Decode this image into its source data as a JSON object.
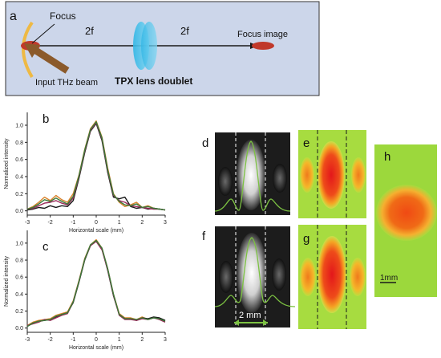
{
  "panel_a": {
    "letter": "a",
    "focus_label": "Focus",
    "distance_left": "2f",
    "distance_right": "2f",
    "focus_image_label": "Focus image",
    "beam_label": "Input THz beam",
    "lens_label": "TPX lens doublet",
    "colors": {
      "background": "#ccd6ea",
      "axis": "#1a1a1a",
      "focus": "#c0392b",
      "lens": "#4fc3e8",
      "beam": "#8b5a2b",
      "mirror": "#f2b632"
    }
  },
  "panel_labels": {
    "d": "d",
    "e": "e",
    "f": "f",
    "g": "g",
    "h": "h"
  },
  "scale_bars": {
    "df": "2 mm",
    "h": "1mm"
  },
  "chart_data": [
    {
      "type": "line",
      "panel": "b",
      "xlabel": "Horizontal scale (mm)",
      "ylabel": "Normalized intensity",
      "xlim": [
        -3,
        3
      ],
      "ylim": [
        -0.05,
        1.15
      ],
      "xticks": [
        "-3",
        "-2",
        "-1",
        "0",
        "1",
        "2",
        "3"
      ],
      "yticks": [
        "0.0",
        "0.2",
        "0.4",
        "0.6",
        "0.8",
        "1.0"
      ],
      "x": [
        -3.0,
        -2.75,
        -2.5,
        -2.25,
        -2.0,
        -1.75,
        -1.5,
        -1.25,
        -1.0,
        -0.75,
        -0.5,
        -0.25,
        0.0,
        0.25,
        0.5,
        0.75,
        1.0,
        1.25,
        1.5,
        1.75,
        2.0,
        2.25,
        2.5,
        2.75,
        3.0
      ],
      "series": [
        {
          "color": "#d9822b",
          "values": [
            0.02,
            0.05,
            0.1,
            0.16,
            0.12,
            0.18,
            0.13,
            0.1,
            0.2,
            0.42,
            0.72,
            0.96,
            1.05,
            0.86,
            0.5,
            0.2,
            0.1,
            0.05,
            0.07,
            0.1,
            0.04,
            0.06,
            0.03,
            0.02,
            0.01
          ]
        },
        {
          "color": "#1a1a1a",
          "values": [
            0.01,
            0.02,
            0.04,
            0.03,
            0.06,
            0.04,
            0.06,
            0.05,
            0.12,
            0.38,
            0.68,
            0.93,
            1.02,
            0.82,
            0.45,
            0.16,
            0.14,
            0.16,
            0.05,
            0.03,
            0.04,
            0.02,
            0.03,
            0.02,
            0.01
          ]
        },
        {
          "color": "#9b2a5a",
          "values": [
            0.02,
            0.03,
            0.06,
            0.09,
            0.1,
            0.12,
            0.09,
            0.07,
            0.15,
            0.4,
            0.7,
            0.94,
            1.03,
            0.84,
            0.47,
            0.18,
            0.12,
            0.1,
            0.06,
            0.05,
            0.04,
            0.03,
            0.02,
            0.02,
            0.01
          ]
        },
        {
          "color": "#3a7a3a",
          "values": [
            0.02,
            0.04,
            0.08,
            0.13,
            0.11,
            0.15,
            0.11,
            0.08,
            0.17,
            0.41,
            0.71,
            0.95,
            1.04,
            0.85,
            0.48,
            0.19,
            0.11,
            0.07,
            0.06,
            0.08,
            0.04,
            0.05,
            0.03,
            0.02,
            0.01
          ]
        }
      ]
    },
    {
      "type": "line",
      "panel": "c",
      "xlabel": "Horizontal scale (mm)",
      "ylabel": "Normalized intensity",
      "xlim": [
        -3,
        3
      ],
      "ylim": [
        -0.05,
        1.15
      ],
      "xticks": [
        "-3",
        "-2",
        "-1",
        "0",
        "1",
        "2",
        "3"
      ],
      "yticks": [
        "0.0",
        "0.2",
        "0.4",
        "0.6",
        "0.8",
        "1.0"
      ],
      "x": [
        -3.0,
        -2.75,
        -2.5,
        -2.25,
        -2.0,
        -1.75,
        -1.5,
        -1.25,
        -1.0,
        -0.75,
        -0.5,
        -0.25,
        0.0,
        0.25,
        0.5,
        0.75,
        1.0,
        1.25,
        1.5,
        1.75,
        2.0,
        2.25,
        2.5,
        2.75,
        3.0
      ],
      "series": [
        {
          "color": "#d9822b",
          "values": [
            0.03,
            0.07,
            0.09,
            0.1,
            0.11,
            0.15,
            0.17,
            0.19,
            0.32,
            0.56,
            0.82,
            0.98,
            1.04,
            0.94,
            0.7,
            0.4,
            0.17,
            0.12,
            0.12,
            0.1,
            0.13,
            0.1,
            0.12,
            0.11,
            0.08
          ]
        },
        {
          "color": "#1a1a1a",
          "values": [
            0.02,
            0.06,
            0.08,
            0.09,
            0.1,
            0.13,
            0.16,
            0.18,
            0.3,
            0.54,
            0.8,
            0.97,
            1.03,
            0.93,
            0.68,
            0.38,
            0.16,
            0.11,
            0.11,
            0.09,
            0.12,
            0.11,
            0.13,
            0.12,
            0.09
          ]
        },
        {
          "color": "#9b2a5a",
          "values": [
            0.03,
            0.05,
            0.07,
            0.1,
            0.09,
            0.12,
            0.15,
            0.17,
            0.31,
            0.55,
            0.81,
            0.97,
            1.02,
            0.92,
            0.69,
            0.39,
            0.15,
            0.1,
            0.1,
            0.09,
            0.11,
            0.1,
            0.12,
            0.1,
            0.07
          ]
        },
        {
          "color": "#3a7a3a",
          "values": [
            0.02,
            0.06,
            0.08,
            0.09,
            0.1,
            0.14,
            0.16,
            0.18,
            0.31,
            0.55,
            0.81,
            0.98,
            1.03,
            0.94,
            0.7,
            0.4,
            0.16,
            0.11,
            0.11,
            0.1,
            0.12,
            0.1,
            0.12,
            0.11,
            0.08
          ]
        }
      ]
    }
  ]
}
